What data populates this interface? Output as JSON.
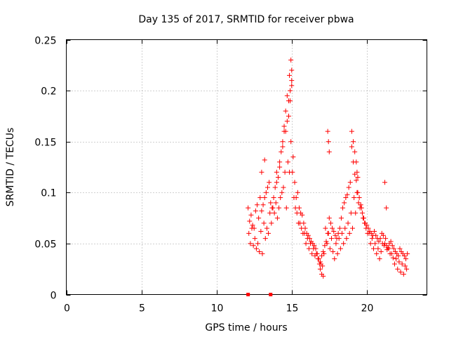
{
  "chart_data": {
    "type": "scatter",
    "title": "Day 135 of 2017, SRMTID for receiver pbwa",
    "xlabel": "GPS time / hours",
    "ylabel": "SRMTID / TECUs",
    "xlim": [
      0,
      24
    ],
    "ylim": [
      0,
      0.25
    ],
    "xticks": [
      0,
      5,
      10,
      15,
      20
    ],
    "xtick_labels": [
      "0",
      "5",
      "10",
      "15",
      "20"
    ],
    "yticks": [
      0,
      0.05,
      0.1,
      0.15,
      0.2,
      0.25
    ],
    "ytick_labels": [
      "0",
      "0.05",
      "0.1",
      "0.15",
      "0.2",
      "0.25"
    ],
    "grid": true,
    "marker": "+",
    "color": "#ff0000",
    "series": [
      {
        "name": "SRMTID",
        "x": [
          12.1,
          12.2,
          12.3,
          12.4,
          12.5,
          12.6,
          12.7,
          12.8,
          12.9,
          13.0,
          13.1,
          13.2,
          13.3,
          13.4,
          13.5,
          13.6,
          13.7,
          13.8,
          13.9,
          14.0,
          14.1,
          14.2,
          14.3,
          14.4,
          14.5,
          14.6,
          14.7,
          14.8,
          14.9,
          15.0,
          15.1,
          15.2,
          15.3,
          15.4,
          15.5,
          15.6,
          15.7,
          15.8,
          15.9,
          16.0,
          16.1,
          16.2,
          16.3,
          16.4,
          16.5,
          16.6,
          16.7,
          16.8,
          16.9,
          17.0,
          17.1,
          17.2,
          17.3,
          17.4,
          17.5,
          17.6,
          17.7,
          17.8,
          17.9,
          18.0,
          18.1,
          18.2,
          18.3,
          18.4,
          18.5,
          18.6,
          18.7,
          18.8,
          18.9,
          19.0,
          19.1,
          19.2,
          19.3,
          19.4,
          19.5,
          19.6,
          19.7,
          19.8,
          19.9,
          20.0,
          20.1,
          20.2,
          20.3,
          20.4,
          20.5,
          20.6,
          20.7,
          20.8,
          20.9,
          21.0,
          21.1,
          21.2,
          21.3,
          21.4,
          21.5,
          21.6,
          21.7,
          21.8,
          21.9,
          22.0,
          22.1,
          22.2,
          22.3,
          22.4,
          22.5,
          22.6,
          22.7,
          12.15,
          12.35,
          12.55,
          12.75,
          12.95,
          13.15,
          13.35,
          13.55,
          13.75,
          13.95,
          14.15,
          14.35,
          14.55,
          14.75,
          14.95,
          15.15,
          15.35,
          15.55,
          15.75,
          15.95,
          16.15,
          16.35,
          16.55,
          16.75,
          16.95,
          17.15,
          17.35,
          17.55,
          17.75,
          17.95,
          18.15,
          18.35,
          18.55,
          18.75,
          18.95,
          19.15,
          19.35,
          19.55,
          19.75,
          19.95,
          20.15,
          20.35,
          20.55,
          20.75,
          20.95,
          21.15,
          21.35,
          21.55,
          21.75,
          21.95,
          22.15,
          22.35,
          22.55,
          12.25,
          12.45,
          12.65,
          12.85,
          13.05,
          13.25,
          13.45,
          13.65,
          13.85,
          14.05,
          14.25,
          14.45,
          14.65,
          14.85,
          15.05,
          15.25,
          15.45,
          15.65,
          15.85,
          16.05,
          16.25,
          16.45,
          16.65,
          16.85,
          17.05,
          17.25,
          17.45,
          17.65,
          17.85,
          18.05,
          18.25,
          18.45,
          18.65,
          18.85,
          19.05,
          19.25,
          19.45,
          19.65,
          19.85,
          20.05,
          20.25,
          20.45,
          20.65,
          20.85,
          21.05,
          21.25,
          21.45,
          21.65,
          21.85,
          22.05,
          22.25,
          22.45,
          22.65,
          14.2,
          14.4,
          14.6,
          14.8,
          14.9,
          15.0,
          15.0,
          14.95,
          14.85,
          14.7,
          14.5,
          17.4,
          17.45,
          17.5,
          19.0,
          19.1,
          19.2,
          19.3,
          19.35,
          19.4,
          21.2,
          21.3,
          16.9,
          17.0,
          17.1,
          13.0,
          13.2,
          14.0
        ],
        "y": [
          0.085,
          0.072,
          0.078,
          0.068,
          0.065,
          0.082,
          0.088,
          0.075,
          0.095,
          0.082,
          0.088,
          0.095,
          0.1,
          0.105,
          0.11,
          0.09,
          0.085,
          0.095,
          0.105,
          0.11,
          0.115,
          0.125,
          0.14,
          0.15,
          0.165,
          0.18,
          0.17,
          0.19,
          0.2,
          0.21,
          0.135,
          0.11,
          0.095,
          0.1,
          0.085,
          0.08,
          0.078,
          0.07,
          0.065,
          0.06,
          0.058,
          0.055,
          0.052,
          0.05,
          0.048,
          0.045,
          0.04,
          0.035,
          0.032,
          0.038,
          0.042,
          0.048,
          0.052,
          0.06,
          0.075,
          0.07,
          0.065,
          0.062,
          0.058,
          0.055,
          0.06,
          0.065,
          0.075,
          0.085,
          0.09,
          0.095,
          0.098,
          0.105,
          0.11,
          0.145,
          0.13,
          0.118,
          0.112,
          0.1,
          0.095,
          0.088,
          0.08,
          0.075,
          0.07,
          0.068,
          0.065,
          0.062,
          0.06,
          0.058,
          0.062,
          0.058,
          0.055,
          0.052,
          0.055,
          0.06,
          0.058,
          0.05,
          0.048,
          0.046,
          0.05,
          0.052,
          0.048,
          0.045,
          0.042,
          0.04,
          0.038,
          0.045,
          0.042,
          0.04,
          0.038,
          0.035,
          0.04,
          0.06,
          0.065,
          0.055,
          0.05,
          0.062,
          0.07,
          0.065,
          0.08,
          0.085,
          0.09,
          0.085,
          0.1,
          0.12,
          0.13,
          0.15,
          0.095,
          0.08,
          0.07,
          0.06,
          0.05,
          0.045,
          0.04,
          0.038,
          0.035,
          0.03,
          0.04,
          0.05,
          0.045,
          0.042,
          0.05,
          0.055,
          0.06,
          0.065,
          0.07,
          0.08,
          0.095,
          0.1,
          0.085,
          0.075,
          0.065,
          0.06,
          0.055,
          0.05,
          0.045,
          0.042,
          0.048,
          0.044,
          0.04,
          0.036,
          0.035,
          0.032,
          0.03,
          0.028,
          0.05,
          0.048,
          0.045,
          0.042,
          0.04,
          0.055,
          0.06,
          0.07,
          0.08,
          0.075,
          0.095,
          0.105,
          0.085,
          0.12,
          0.12,
          0.085,
          0.07,
          0.065,
          0.06,
          0.055,
          0.05,
          0.045,
          0.04,
          0.03,
          0.028,
          0.065,
          0.06,
          0.055,
          0.035,
          0.04,
          0.045,
          0.05,
          0.055,
          0.06,
          0.065,
          0.08,
          0.09,
          0.085,
          0.07,
          0.06,
          0.05,
          0.045,
          0.04,
          0.035,
          0.05,
          0.055,
          0.045,
          0.04,
          0.03,
          0.025,
          0.022,
          0.02,
          0.025,
          0.13,
          0.145,
          0.16,
          0.175,
          0.19,
          0.205,
          0.22,
          0.23,
          0.215,
          0.195,
          0.16,
          0.16,
          0.15,
          0.14,
          0.16,
          0.15,
          0.14,
          0.13,
          0.12,
          0.115,
          0.11,
          0.085,
          0.025,
          0.02,
          0.018,
          0.12,
          0.132,
          0.12
        ]
      }
    ],
    "bottom_markers_x": [
      12.1,
      13.6
    ]
  }
}
